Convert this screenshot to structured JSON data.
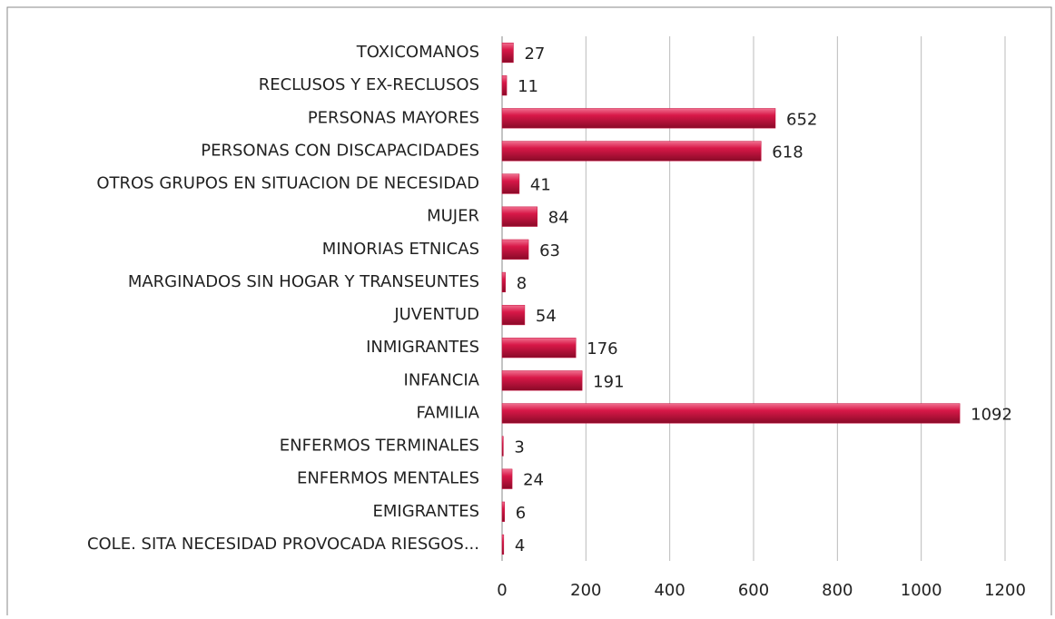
{
  "chart_data": {
    "type": "bar",
    "orientation": "horizontal",
    "categories": [
      "TOXICOMANOS",
      "RECLUSOS Y EX-RECLUSOS",
      "PERSONAS MAYORES",
      "PERSONAS CON DISCAPACIDADES",
      "OTROS GRUPOS EN SITUACION DE NECESIDAD",
      "MUJER",
      "MINORIAS ETNICAS",
      "MARGINADOS SIN HOGAR Y TRANSEUNTES",
      "JUVENTUD",
      "INMIGRANTES",
      "INFANCIA",
      "FAMILIA",
      "ENFERMOS TERMINALES",
      "ENFERMOS MENTALES",
      "EMIGRANTES",
      "COLE. SITA NECESIDAD PROVOCADA RIESGOS..."
    ],
    "values": [
      27,
      11,
      652,
      618,
      41,
      84,
      63,
      8,
      54,
      176,
      191,
      1092,
      3,
      24,
      6,
      4
    ],
    "color": "#c8103e",
    "xlim": [
      0,
      1200
    ],
    "xticks": [
      0,
      200,
      400,
      600,
      800,
      1000,
      1200
    ],
    "grid": true
  }
}
